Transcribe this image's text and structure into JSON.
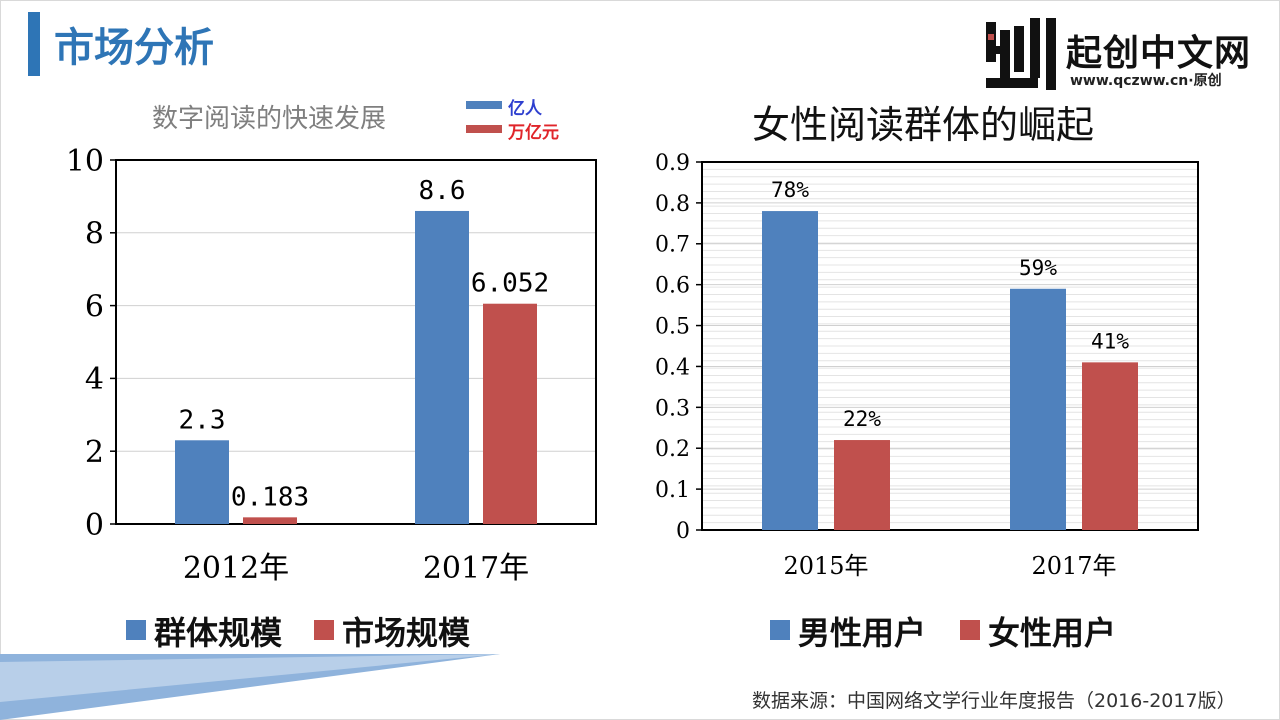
{
  "page": {
    "title": "市场分析",
    "source": "数据来源：中国网络文学行业年度报告（2016-2017版）"
  },
  "logo": {
    "name": "起创中文网",
    "url": "www.qczww.cn·原创"
  },
  "colors": {
    "accent": "#2e75b6",
    "series_blue": "#4f81bd",
    "series_red": "#c0504d"
  },
  "chart_data": [
    {
      "type": "bar",
      "title": "数字阅读的快速发展",
      "units": [
        {
          "label": "亿人",
          "color": "#4f81bd",
          "text_color": "#2e3fcf"
        },
        {
          "label": "万亿元",
          "color": "#c0504d",
          "text_color": "#e0252a"
        }
      ],
      "categories": [
        "2012年",
        "2017年"
      ],
      "series": [
        {
          "name": "群体规模",
          "values": [
            2.3,
            8.6
          ],
          "labels": [
            "2.3",
            "8.6"
          ],
          "color": "#4f81bd"
        },
        {
          "name": "市场规模",
          "values": [
            0.183,
            6.052
          ],
          "labels": [
            "0.183",
            "6.052"
          ],
          "color": "#c0504d"
        }
      ],
      "ylim": [
        0,
        10
      ],
      "yticks": [
        "0",
        "2",
        "4",
        "6",
        "8",
        "10"
      ],
      "grid": true,
      "legend": "bottom"
    },
    {
      "type": "bar",
      "title": "女性阅读群体的崛起",
      "categories": [
        "2015年",
        "2017年"
      ],
      "series": [
        {
          "name": "男性用户",
          "values": [
            0.78,
            0.59
          ],
          "labels": [
            "78%",
            "59%"
          ],
          "color": "#4f81bd"
        },
        {
          "name": "女性用户",
          "values": [
            0.22,
            0.41
          ],
          "labels": [
            "22%",
            "41%"
          ],
          "color": "#c0504d"
        }
      ],
      "ylim": [
        0,
        0.9
      ],
      "yticks": [
        "0",
        "0.1",
        "0.2",
        "0.3",
        "0.4",
        "0.5",
        "0.6",
        "0.7",
        "0.8",
        "0.9"
      ],
      "grid": true,
      "legend": "bottom"
    }
  ]
}
